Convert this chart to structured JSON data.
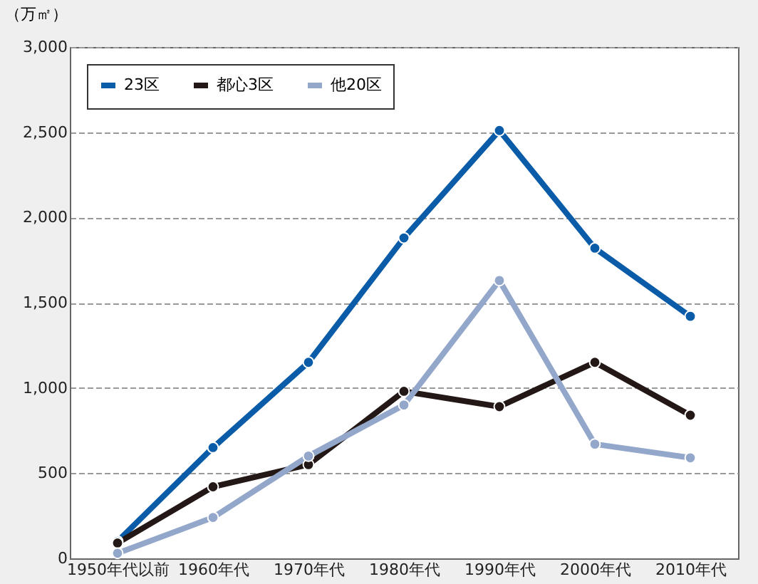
{
  "chart_data": {
    "type": "line",
    "ylabel": "（万㎡）",
    "categories": [
      "1950年代以前",
      "1960年代",
      "1970年代",
      "1980年代",
      "1990年代",
      "2000年代",
      "2010年代"
    ],
    "series": [
      {
        "name": "23区",
        "color": "#0a5ca8",
        "values": [
          100,
          650,
          1150,
          1880,
          2510,
          1820,
          1420
        ]
      },
      {
        "name": "都心3区",
        "color": "#231815",
        "values": [
          90,
          420,
          550,
          980,
          890,
          1150,
          840
        ]
      },
      {
        "name": "他20区",
        "color": "#93a7cb",
        "values": [
          30,
          240,
          600,
          900,
          1630,
          670,
          590
        ]
      }
    ],
    "ylim": [
      0,
      3000
    ],
    "yticks": [
      0,
      500,
      {
        "value": 1000,
        "label": "1,000"
      },
      {
        "value": 1500,
        "label": "1,500"
      },
      {
        "value": 2000,
        "label": "2,000"
      },
      {
        "value": 2500,
        "label": "2,500"
      },
      {
        "value": 3000,
        "label": "3,000"
      }
    ],
    "grid": "y",
    "legend": "top left",
    "marker": "circle",
    "line_style": "solid"
  }
}
